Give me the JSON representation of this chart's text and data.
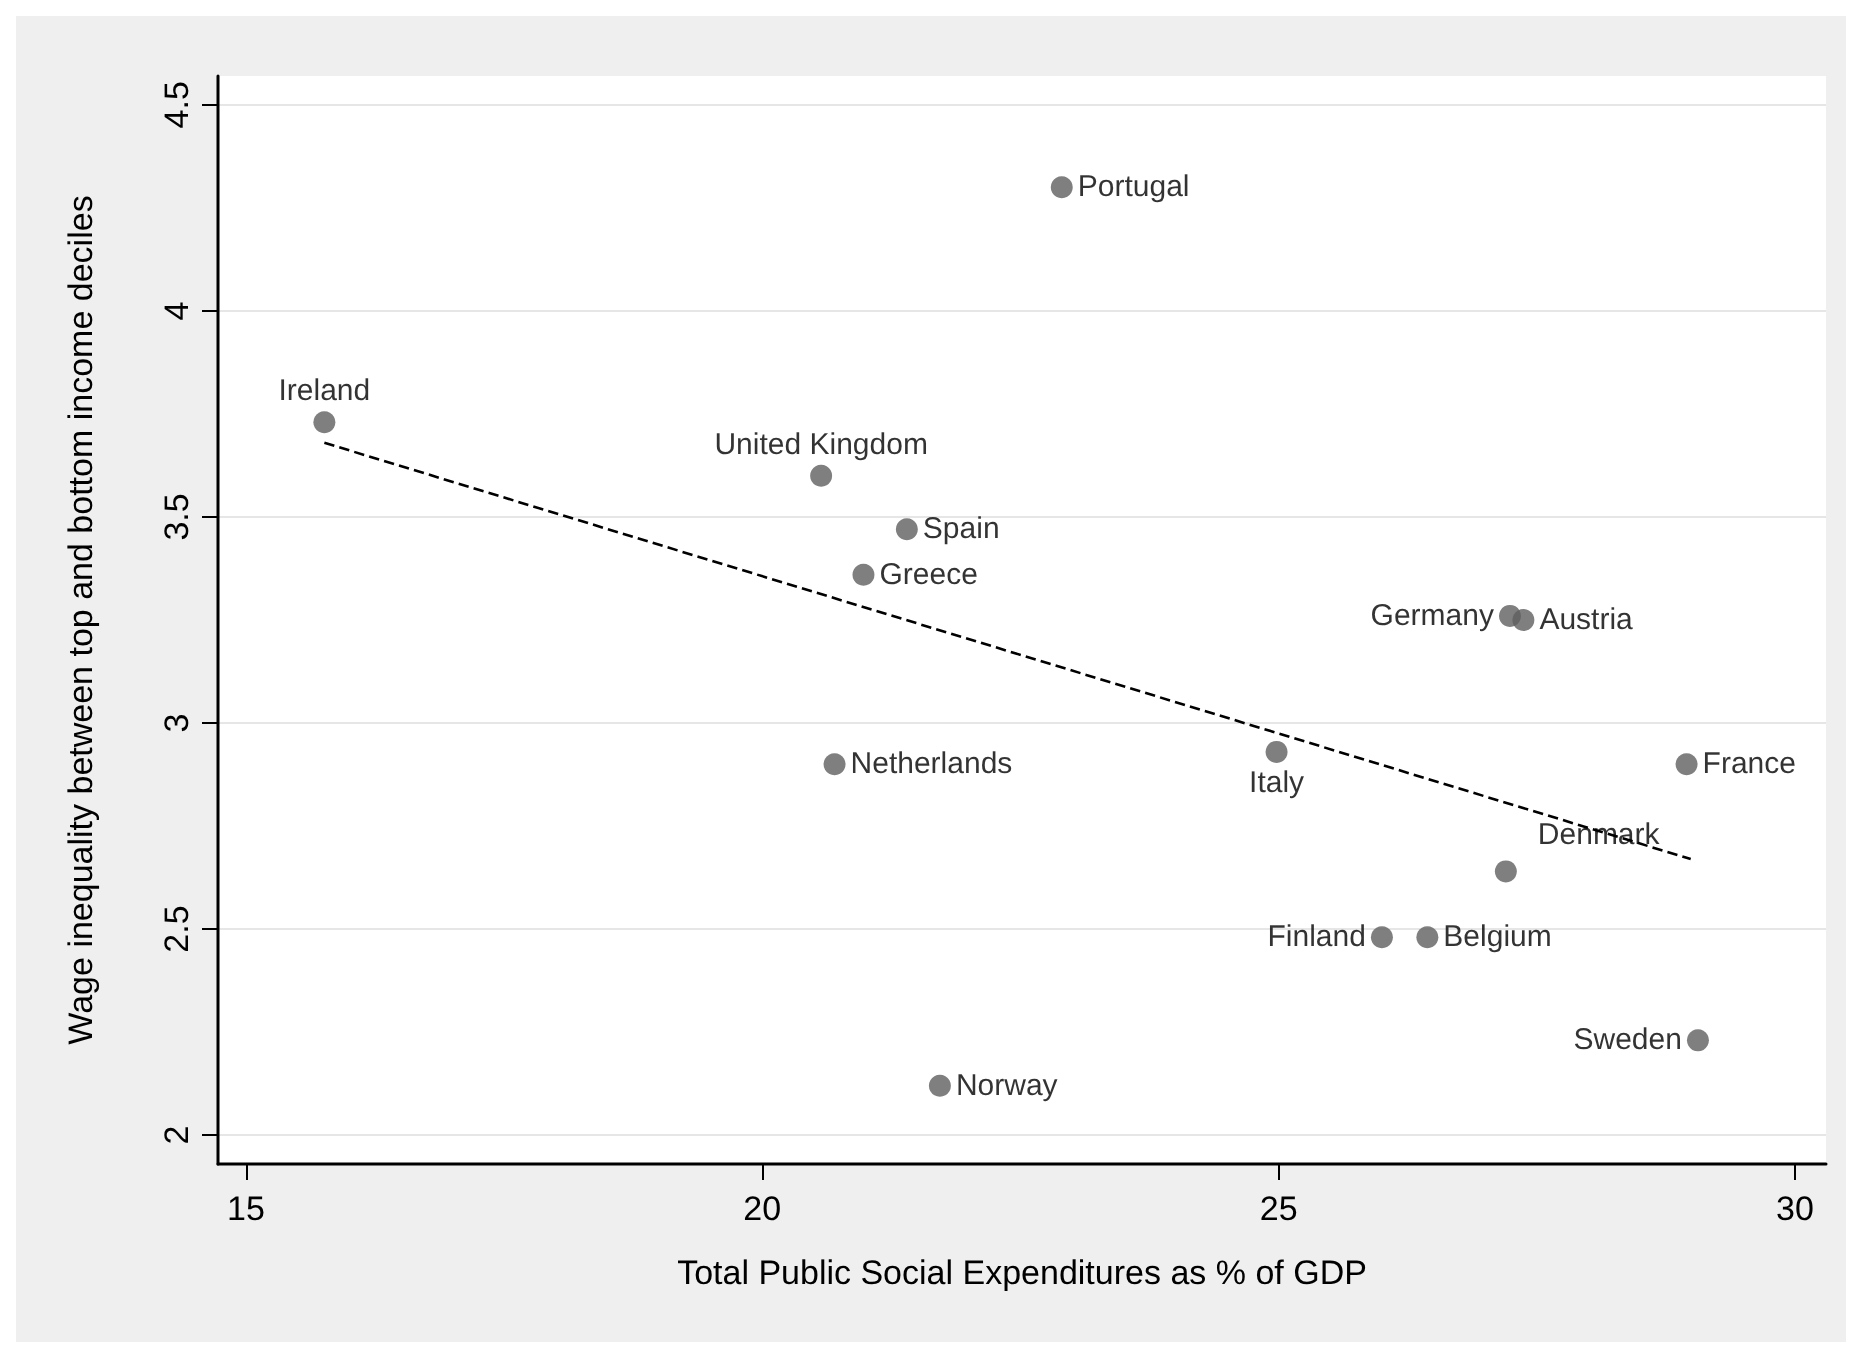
{
  "chart_data": {
    "type": "scatter",
    "xlabel": "Total Public Social Expenditures as % of GDP",
    "ylabel": "Wage inequality between top and bottom income deciles",
    "xlim": [
      14.73,
      30.3
    ],
    "xticks": [
      15,
      20,
      25,
      30
    ],
    "ylim": [
      1.93,
      4.57
    ],
    "yticks": [
      2,
      2.5,
      3,
      3.5,
      4,
      4.5
    ],
    "grid": "y",
    "marker": "circle",
    "series": [
      {
        "color": "#5f5f5f",
        "x": [
          15.76,
          20.57,
          21.4,
          20.98,
          22.9,
          20.7,
          24.98,
          27.24,
          27.37,
          28.95,
          27.2,
          26.0,
          26.44,
          29.06,
          21.72
        ],
        "values": [
          3.73,
          3.6,
          3.47,
          3.36,
          4.3,
          2.9,
          2.93,
          3.26,
          3.25,
          2.9,
          2.64,
          2.48,
          2.48,
          2.23,
          2.12
        ]
      },
      {
        "type": "line",
        "color": "#000000",
        "line_style": "dashed",
        "marker": "none",
        "x": [
          15.76,
          28.99
        ],
        "values": [
          3.68,
          2.67
        ]
      }
    ],
    "annotations": [
      {
        "text": "Ireland",
        "x": 15.76,
        "y": 3.73
      },
      {
        "text": "United Kingdom",
        "x": 20.57,
        "y": 3.6
      },
      {
        "text": "Spain",
        "x": 21.4,
        "y": 3.47
      },
      {
        "text": "Greece",
        "x": 20.98,
        "y": 3.36
      },
      {
        "text": "Portugal",
        "x": 22.9,
        "y": 4.3
      },
      {
        "text": "Netherlands",
        "x": 20.7,
        "y": 2.9
      },
      {
        "text": "Italy",
        "x": 24.98,
        "y": 2.93
      },
      {
        "text": "Germany",
        "x": 27.24,
        "y": 3.26
      },
      {
        "text": "Austria",
        "x": 27.37,
        "y": 3.25
      },
      {
        "text": "France",
        "x": 28.95,
        "y": 2.9
      },
      {
        "text": "Denmark",
        "x": 27.2,
        "y": 2.64
      },
      {
        "text": "Finland",
        "x": 26.0,
        "y": 2.48
      },
      {
        "text": "Belgium",
        "x": 26.44,
        "y": 2.48
      },
      {
        "text": "Sweden",
        "x": 29.06,
        "y": 2.23
      },
      {
        "text": "Norway",
        "x": 21.72,
        "y": 2.12
      }
    ]
  }
}
